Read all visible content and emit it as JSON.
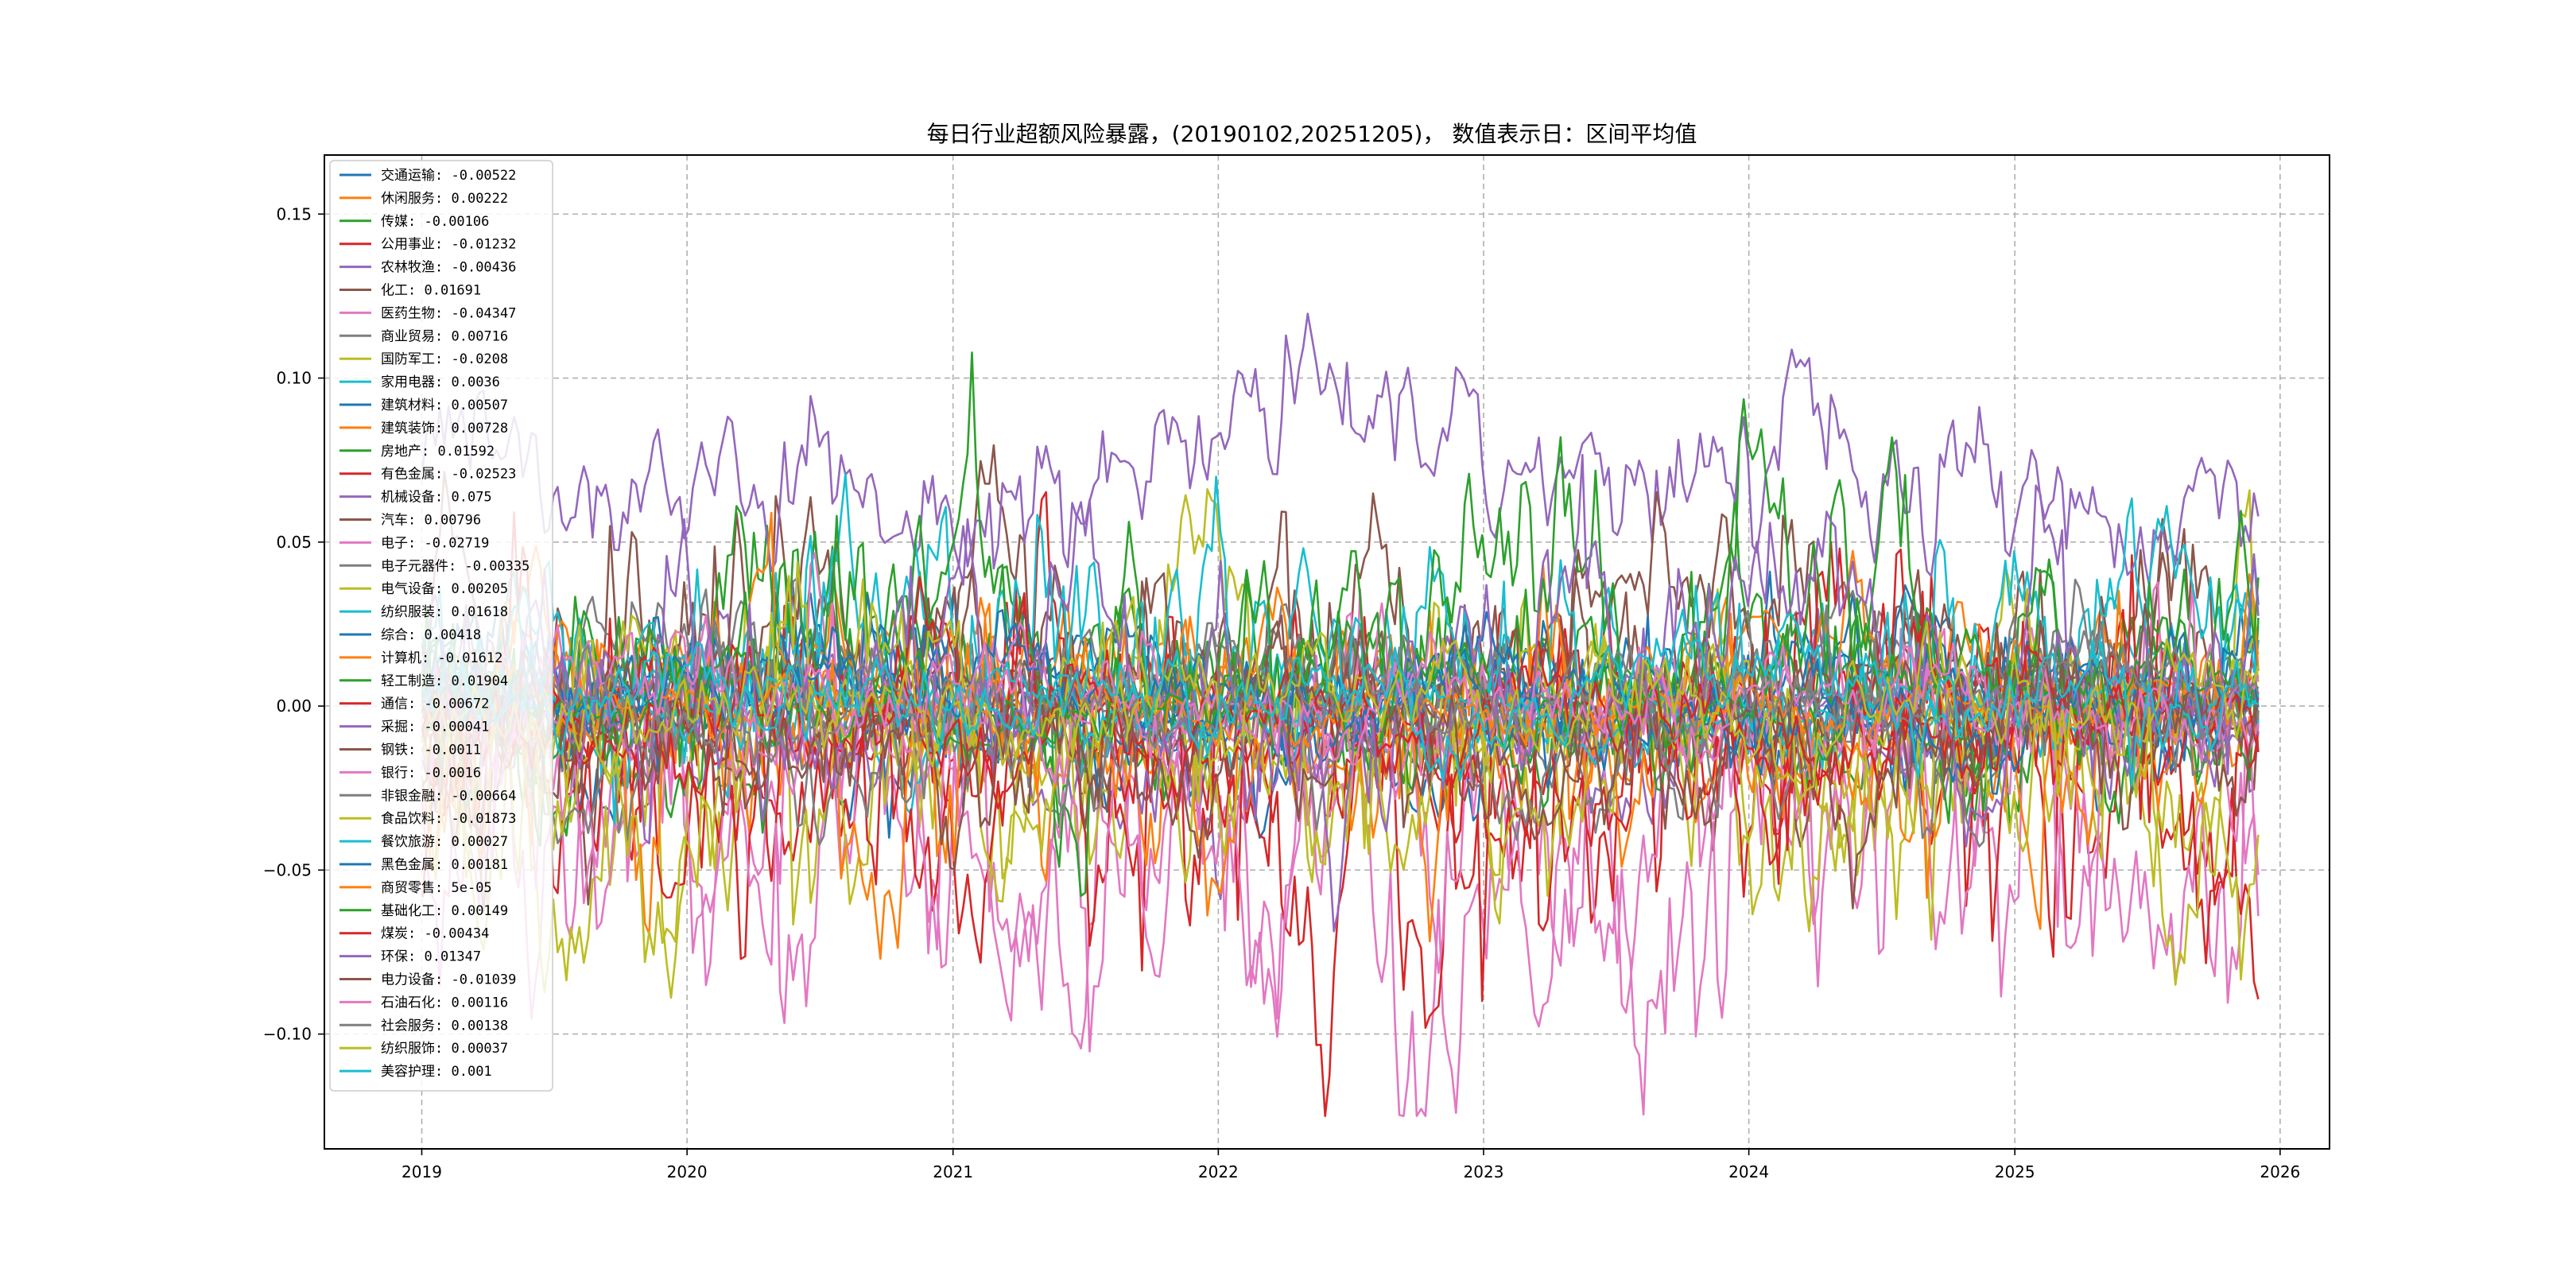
{
  "chart_data": {
    "type": "line",
    "title": "每日行业超额风险暴露，(20190102,20251205)， 数值表示日：区间平均值",
    "xlabel": "",
    "ylabel": "",
    "x_range": [
      "2019-01-02",
      "2025-12-05"
    ],
    "xlim": [
      "2018-08-20",
      "2026-03-10"
    ],
    "ylim": [
      -0.135,
      0.168
    ],
    "x_ticks": [
      "2019",
      "2020",
      "2021",
      "2022",
      "2023",
      "2024",
      "2025",
      "2026"
    ],
    "y_ticks": [
      "0.15",
      "0.10",
      "0.05",
      "0.00",
      "−0.05",
      "−0.10"
    ],
    "y_tick_values": [
      0.15,
      0.1,
      0.05,
      0.0,
      -0.05,
      -0.1
    ],
    "grid": true,
    "legend_position": "upper-left",
    "series": [
      {
        "name": "交通运输",
        "mean": "-0.00522",
        "color": "#1f77b4"
      },
      {
        "name": "休闲服务",
        "mean": "0.00222",
        "color": "#ff7f0e"
      },
      {
        "name": "传媒",
        "mean": "-0.00106",
        "color": "#2ca02c"
      },
      {
        "name": "公用事业",
        "mean": "-0.01232",
        "color": "#d62728"
      },
      {
        "name": "农林牧渔",
        "mean": "-0.00436",
        "color": "#9467bd"
      },
      {
        "name": "化工",
        "mean": "0.01691",
        "color": "#8c564b"
      },
      {
        "name": "医药生物",
        "mean": "-0.04347",
        "color": "#e377c2"
      },
      {
        "name": "商业贸易",
        "mean": "0.00716",
        "color": "#7f7f7f"
      },
      {
        "name": "国防军工",
        "mean": "-0.0208",
        "color": "#bcbd22"
      },
      {
        "name": "家用电器",
        "mean": "0.0036",
        "color": "#17becf"
      },
      {
        "name": "建筑材料",
        "mean": "0.00507",
        "color": "#1f77b4"
      },
      {
        "name": "建筑装饰",
        "mean": "0.00728",
        "color": "#ff7f0e"
      },
      {
        "name": "房地产",
        "mean": "0.01592",
        "color": "#2ca02c"
      },
      {
        "name": "有色金属",
        "mean": "-0.02523",
        "color": "#d62728"
      },
      {
        "name": "机械设备",
        "mean": "0.075",
        "color": "#9467bd"
      },
      {
        "name": "汽车",
        "mean": "0.00796",
        "color": "#8c564b"
      },
      {
        "name": "电子",
        "mean": "-0.02719",
        "color": "#e377c2"
      },
      {
        "name": "电子元器件",
        "mean": "-0.00335",
        "color": "#7f7f7f"
      },
      {
        "name": "电气设备",
        "mean": "0.00205",
        "color": "#bcbd22"
      },
      {
        "name": "纺织服装",
        "mean": "0.01618",
        "color": "#17becf"
      },
      {
        "name": "综合",
        "mean": "0.00418",
        "color": "#1f77b4"
      },
      {
        "name": "计算机",
        "mean": "-0.01612",
        "color": "#ff7f0e"
      },
      {
        "name": "轻工制造",
        "mean": "0.01904",
        "color": "#2ca02c"
      },
      {
        "name": "通信",
        "mean": "-0.00672",
        "color": "#d62728"
      },
      {
        "name": "采掘",
        "mean": "-0.00041",
        "color": "#9467bd"
      },
      {
        "name": "钢铁",
        "mean": "-0.0011",
        "color": "#8c564b"
      },
      {
        "name": "银行",
        "mean": "-0.0016",
        "color": "#e377c2"
      },
      {
        "name": "非银金融",
        "mean": "-0.00664",
        "color": "#7f7f7f"
      },
      {
        "name": "食品饮料",
        "mean": "-0.01873",
        "color": "#bcbd22"
      },
      {
        "name": "餐饮旅游",
        "mean": "0.00027",
        "color": "#17becf"
      },
      {
        "name": "黑色金属",
        "mean": "0.00181",
        "color": "#1f77b4"
      },
      {
        "name": "商贸零售",
        "mean": "5e-05",
        "color": "#ff7f0e"
      },
      {
        "name": "基础化工",
        "mean": "0.00149",
        "color": "#2ca02c"
      },
      {
        "name": "煤炭",
        "mean": "-0.00434",
        "color": "#d62728"
      },
      {
        "name": "环保",
        "mean": "0.01347",
        "color": "#9467bd"
      },
      {
        "name": "电力设备",
        "mean": "-0.01039",
        "color": "#8c564b"
      },
      {
        "name": "石油石化",
        "mean": "0.00116",
        "color": "#e377c2"
      },
      {
        "name": "社会服务",
        "mean": "0.00138",
        "color": "#7f7f7f"
      },
      {
        "name": "纺织服饰",
        "mean": "0.00037",
        "color": "#bcbd22"
      },
      {
        "name": "美容护理",
        "mean": "0.001",
        "color": "#17becf"
      }
    ]
  }
}
